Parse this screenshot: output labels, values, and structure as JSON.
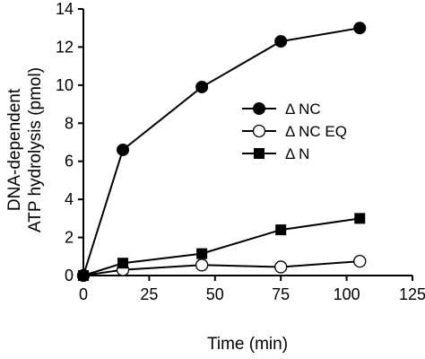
{
  "chart_data": {
    "type": "line",
    "xlabel": "Time (min)",
    "ylabel_lines": [
      "DNA-dependent",
      "ATP hydrolysis (pmol)"
    ],
    "xlim": [
      0,
      125
    ],
    "ylim": [
      0,
      14
    ],
    "xticks": [
      0,
      25,
      50,
      75,
      100,
      125
    ],
    "yticks": [
      0,
      2,
      4,
      6,
      8,
      10,
      12,
      14
    ],
    "grid": false,
    "legend_position": "right-middle",
    "series": [
      {
        "name": "Δ NC",
        "marker": "circle-filled",
        "points": [
          [
            0,
            0
          ],
          [
            15,
            6.6
          ],
          [
            45,
            9.9
          ],
          [
            75,
            12.3
          ],
          [
            105,
            13.0
          ]
        ]
      },
      {
        "name": "Δ NC EQ",
        "marker": "circle-open",
        "points": [
          [
            0,
            0
          ],
          [
            15,
            0.3
          ],
          [
            45,
            0.55
          ],
          [
            75,
            0.45
          ],
          [
            105,
            0.75
          ]
        ]
      },
      {
        "name": "Δ N",
        "marker": "square-filled",
        "points": [
          [
            0,
            0
          ],
          [
            15,
            0.65
          ],
          [
            45,
            1.15
          ],
          [
            75,
            2.4
          ],
          [
            105,
            3.0
          ]
        ]
      }
    ]
  }
}
